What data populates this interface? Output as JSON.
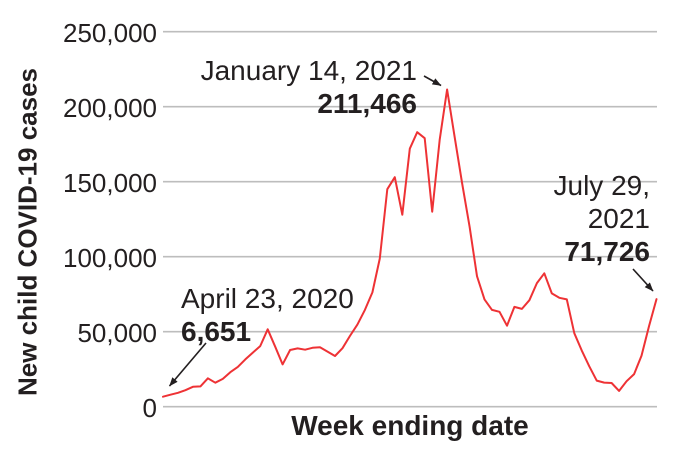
{
  "chart_data": {
    "type": "line",
    "title": "",
    "ylabel": "New child COVID-19 cases",
    "xlabel": "Week ending date",
    "ylim": [
      0,
      250000
    ],
    "y_ticks": [
      0,
      50000,
      100000,
      150000,
      200000,
      250000
    ],
    "y_tick_labels": [
      "0",
      "50,000",
      "100,000",
      "150,000",
      "200,000",
      "250,000"
    ],
    "grid": "horizontal-only",
    "legend": "none",
    "colors": {
      "line": "#ee3235",
      "grid": "#bdbdbd",
      "text": "#231f20",
      "background": "#ffffff"
    },
    "series": [
      {
        "name": "New child COVID-19 cases per week",
        "values": [
          6651,
          8000,
          9300,
          11000,
          13300,
          13500,
          18900,
          16000,
          18500,
          23000,
          26500,
          31500,
          36000,
          40400,
          51600,
          40000,
          28200,
          37800,
          38900,
          38000,
          39300,
          39600,
          36700,
          33800,
          39000,
          47100,
          54700,
          64500,
          76200,
          98800,
          145000,
          153000,
          128000,
          172000,
          183000,
          179000,
          130000,
          178000,
          211466,
          180000,
          149000,
          120000,
          87000,
          71500,
          64500,
          63300,
          54000,
          66500,
          65200,
          71000,
          82400,
          88900,
          75500,
          72600,
          71500,
          49000,
          37500,
          27000,
          17400,
          16100,
          15800,
          10500,
          17000,
          21700,
          34000,
          53600,
          71726
        ]
      }
    ],
    "annotations": [
      {
        "label_lines": [
          "April 23, 2020"
        ],
        "value_label": "6,651",
        "value": 6651,
        "week_index": 0
      },
      {
        "label_lines": [
          "January 14, 2021"
        ],
        "value_label": "211,466",
        "value": 211466,
        "week_index": 38
      },
      {
        "label_lines": [
          "July 29,",
          "2021"
        ],
        "value_label": "71,726",
        "value": 71726,
        "week_index": 66
      }
    ]
  }
}
